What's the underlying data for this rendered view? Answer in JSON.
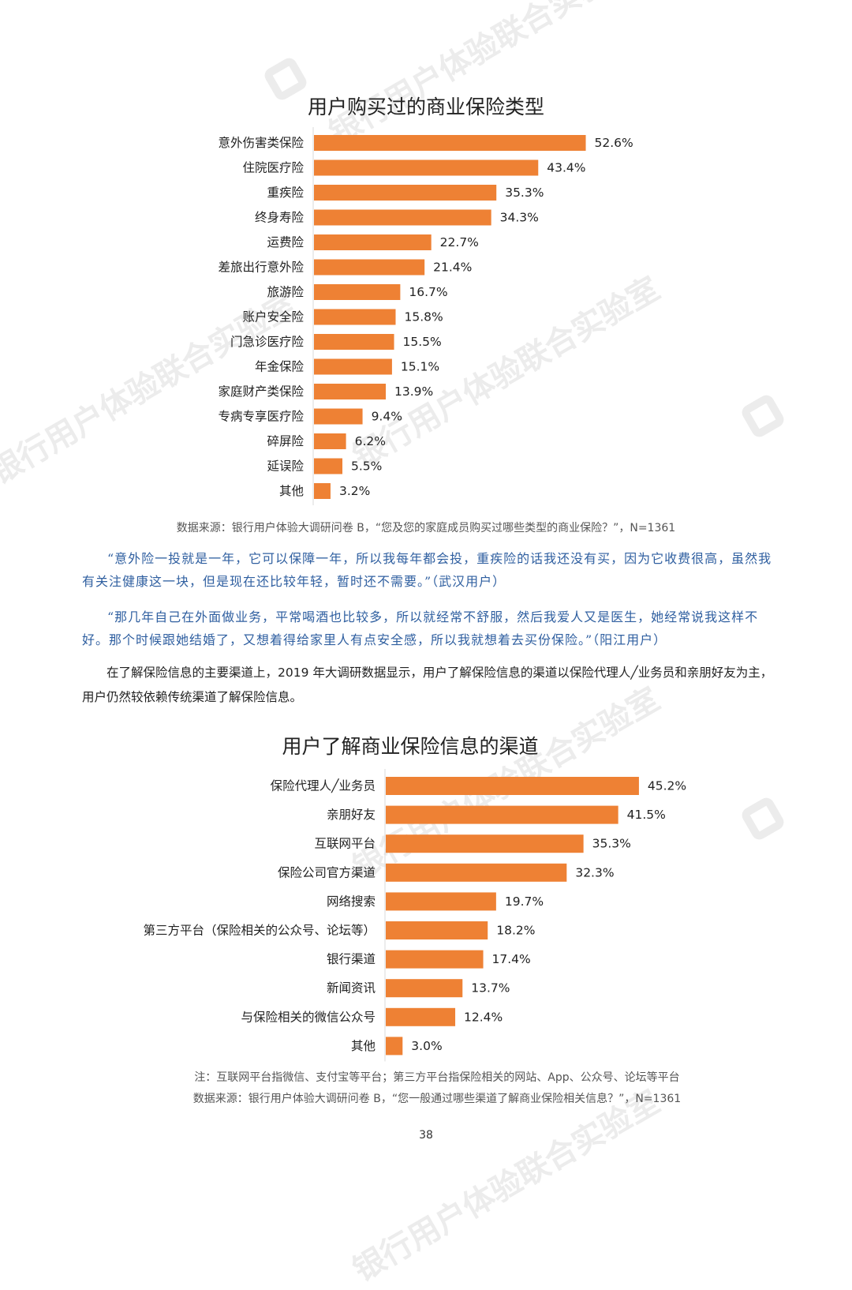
{
  "watermark": "银行用户体验联合实验室",
  "chart_data": [
    {
      "type": "bar",
      "orientation": "horizontal",
      "title": "用户购买过的商业保险类型",
      "categories": [
        "意外伤害类保险",
        "住院医疗险",
        "重疾险",
        "终身寿险",
        "运费险",
        "差旅出行意外险",
        "旅游险",
        "账户安全险",
        "门急诊医疗险",
        "年金保险",
        "家庭财产类保险",
        "专病专享医疗险",
        "碎屏险",
        "延误险",
        "其他"
      ],
      "values": [
        52.6,
        43.4,
        35.3,
        34.3,
        22.7,
        21.4,
        16.7,
        15.8,
        15.5,
        15.1,
        13.9,
        9.4,
        6.2,
        5.5,
        3.2
      ],
      "value_suffix": "%",
      "bar_color": "#ee8134"
    },
    {
      "type": "bar",
      "orientation": "horizontal",
      "title": "用户了解商业保险信息的渠道",
      "categories": [
        "保险代理人╱业务员",
        "亲朋好友",
        "互联网平台",
        "保险公司官方渠道",
        "网络搜索",
        "第三方平台（保险相关的公众号、论坛等）",
        "银行渠道",
        "新闻资讯",
        "与保险相关的微信公众号",
        "其他"
      ],
      "values": [
        45.2,
        41.5,
        35.3,
        32.3,
        19.7,
        18.2,
        17.4,
        13.7,
        12.4,
        3.0
      ],
      "value_suffix": "%",
      "bar_color": "#ee8134"
    }
  ],
  "chart1_source": "数据来源：银行用户体验大调研问卷 B，“您及您的家庭成员购买过哪些类型的商业保险？”，N=1361",
  "quote1": "“意外险一投就是一年，它可以保障一年，所以我每年都会投，重疾险的话我还没有买，因为它收费很高，虽然我有关注健康这一块，但是现在还比较年轻，暂时还不需要。”（武汉用户）",
  "quote2": "“那几年自己在外面做业务，平常喝酒也比较多，所以就经常不舒服，然后我爱人又是医生，她经常说我这样不好。那个时候跟她结婚了，又想着得给家里人有点安全感，所以我就想着去买份保险。”（阳江用户）",
  "paragraph": "在了解保险信息的主要渠道上，2019 年大调研数据显示，用户了解保险信息的渠道以保险代理人╱业务员和亲朋好友为主，用户仍然较依赖传统渠道了解保险信息。",
  "chart2_note": "注：互联网平台指微信、支付宝等平台；第三方平台指保险相关的网站、App、公众号、论坛等平台",
  "chart2_source": "数据来源：银行用户体验大调研问卷 B，“您一般通过哪些渠道了解商业保险相关信息？”，N=1361",
  "page_number": "38"
}
